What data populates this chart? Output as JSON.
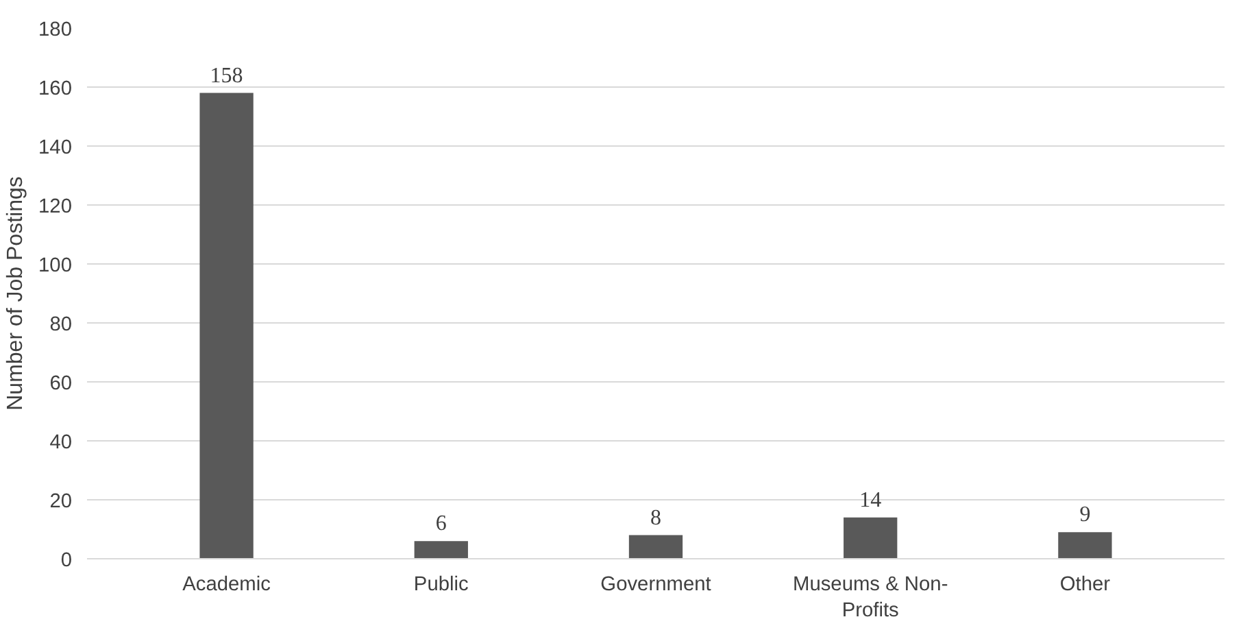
{
  "chart_data": {
    "type": "bar",
    "ylabel": "Number of Job Postings",
    "categories": [
      "Academic",
      "Public",
      "Government",
      "Museums & Non-Profits",
      "Other"
    ],
    "values": [
      158,
      6,
      8,
      14,
      9
    ],
    "color": "#595959",
    "ylim": [
      0,
      180
    ],
    "yticks": [
      0,
      20,
      40,
      60,
      80,
      100,
      120,
      140,
      160,
      180
    ],
    "grid": "y",
    "data_labels": true
  }
}
